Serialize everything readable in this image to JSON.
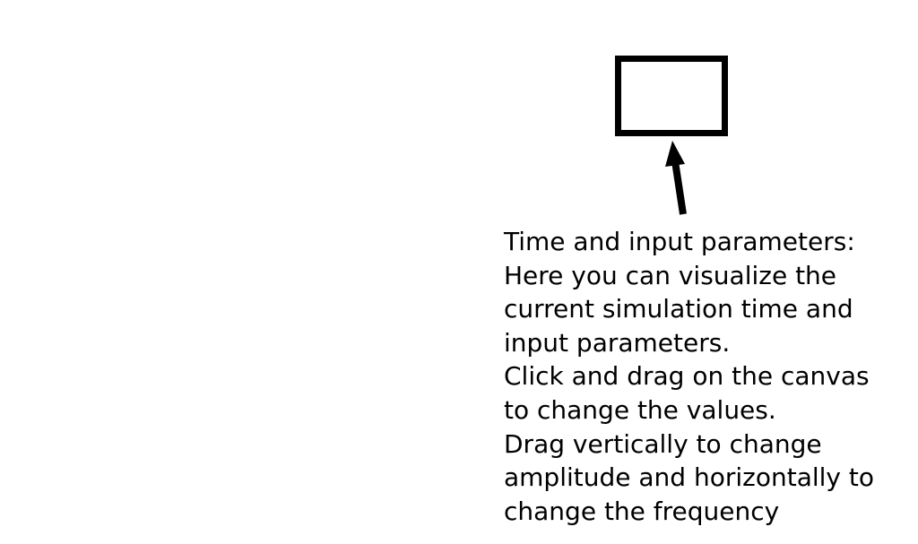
{
  "overlay": {
    "target_box": {
      "label": ""
    },
    "callout": {
      "lines": [
        "Time and input parameters:",
        "Here you can visualize the",
        "current simulation time and",
        "input parameters.",
        "Click and drag on the canvas",
        "to change the values.",
        "Drag vertically to change",
        "amplitude and horizontally to",
        "change the frequency"
      ]
    },
    "arrow_icon": "arrow-up-icon",
    "colors": {
      "background": "#ffffff",
      "ink": "#000000"
    }
  }
}
